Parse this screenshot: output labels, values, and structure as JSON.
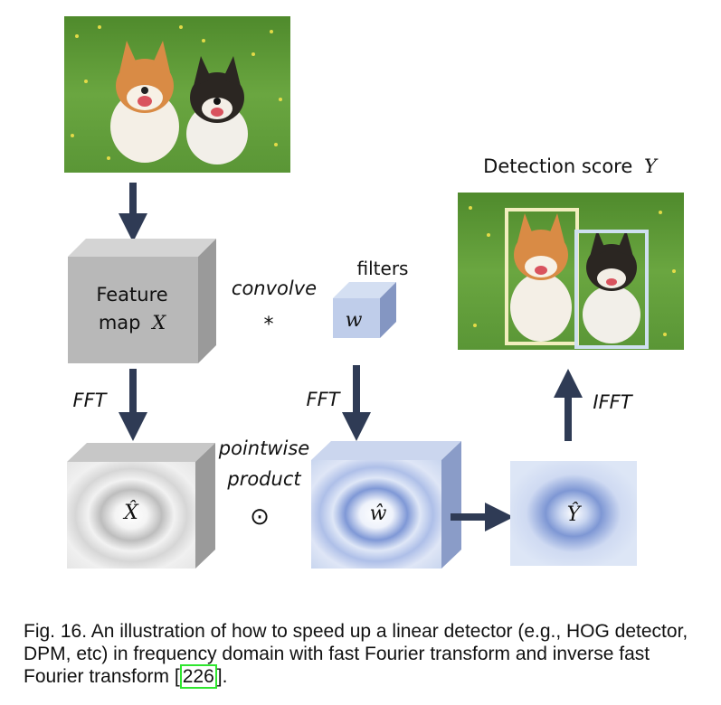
{
  "diagram": {
    "detection_title": "Detection score",
    "detection_var": "Y",
    "feature_map_line1": "Feature",
    "feature_map_line2": "map",
    "feature_map_var": "X",
    "convolve_label": "convolve",
    "convolve_symbol": "*",
    "filters_label": "filters",
    "filter_var": "w",
    "fft_left": "FFT",
    "fft_mid": "FFT",
    "ifft_label": "IFFT",
    "pointwise_line1": "pointwise",
    "pointwise_line2": "product",
    "pointwise_symbol": "⊙",
    "x_hat": "X̂",
    "w_hat": "ŵ",
    "y_hat": "Ŷ"
  },
  "caption": {
    "text": "Fig. 16. An illustration of how to speed up a linear detector (e.g., HOG detector, DPM, etc) in frequency domain with fast Fourier transform and inverse fast Fourier transform",
    "ref": "226",
    "ref_open": "[",
    "ref_close": "]",
    "tail": "."
  },
  "colors": {
    "arrow": "#2f3b55",
    "gray_face": "#b8b8b8",
    "blue_face": "#bfcdea",
    "grass": "#5e9a36",
    "box_yellow": "#f2eebe",
    "box_blue": "#cfe0f0"
  }
}
